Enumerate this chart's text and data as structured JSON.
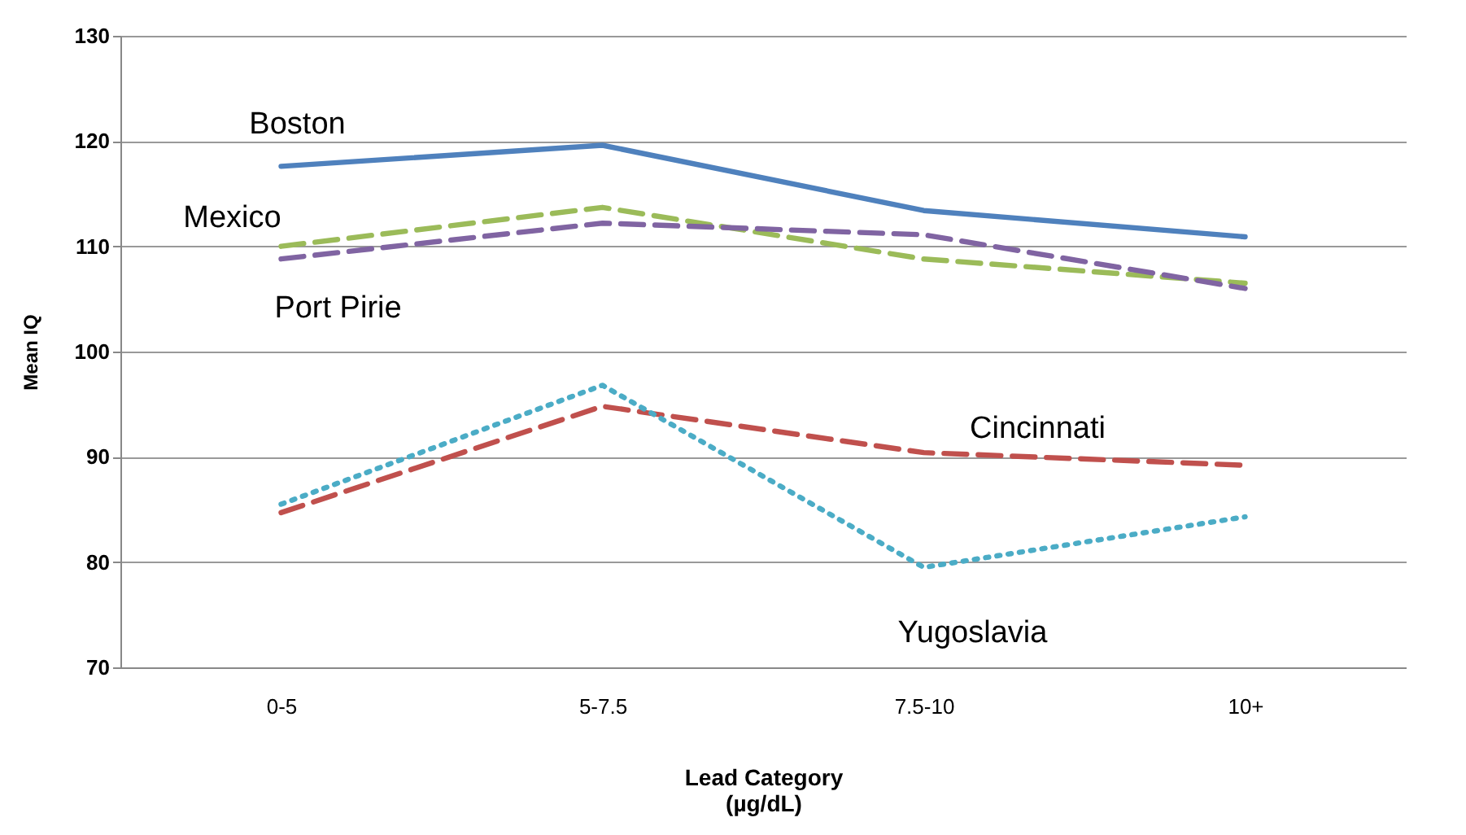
{
  "chart_data": {
    "type": "line",
    "xlabel": "Lead Category\n(µg/dL)",
    "ylabel": "Mean IQ",
    "categories": [
      "0-5",
      "5-7.5",
      "7.5-10",
      "10+"
    ],
    "ylim": [
      70,
      130
    ],
    "yticks": [
      70,
      80,
      90,
      100,
      110,
      120,
      130
    ],
    "grid": "y",
    "legend": false,
    "marker": "none",
    "series": [
      {
        "name": "Boston",
        "color": "#4f81bd",
        "line_style": "solid",
        "values": [
          117.6,
          119.6,
          113.4,
          110.9
        ]
      },
      {
        "name": "Mexico",
        "color": "#9bbb59",
        "line_style": "dashed",
        "values": [
          110.0,
          113.7,
          108.8,
          106.5
        ]
      },
      {
        "name": "Port Pirie",
        "color": "#8064a2",
        "line_style": "dashed",
        "values": [
          108.8,
          112.2,
          111.1,
          106.0
        ]
      },
      {
        "name": "Cincinnati",
        "color": "#c0504d",
        "line_style": "dashed",
        "values": [
          84.7,
          94.8,
          90.4,
          89.2
        ]
      },
      {
        "name": "Yugoslavia",
        "color": "#4bacc6",
        "line_style": "dotted",
        "values": [
          85.5,
          96.8,
          79.5,
          84.3
        ]
      }
    ]
  }
}
